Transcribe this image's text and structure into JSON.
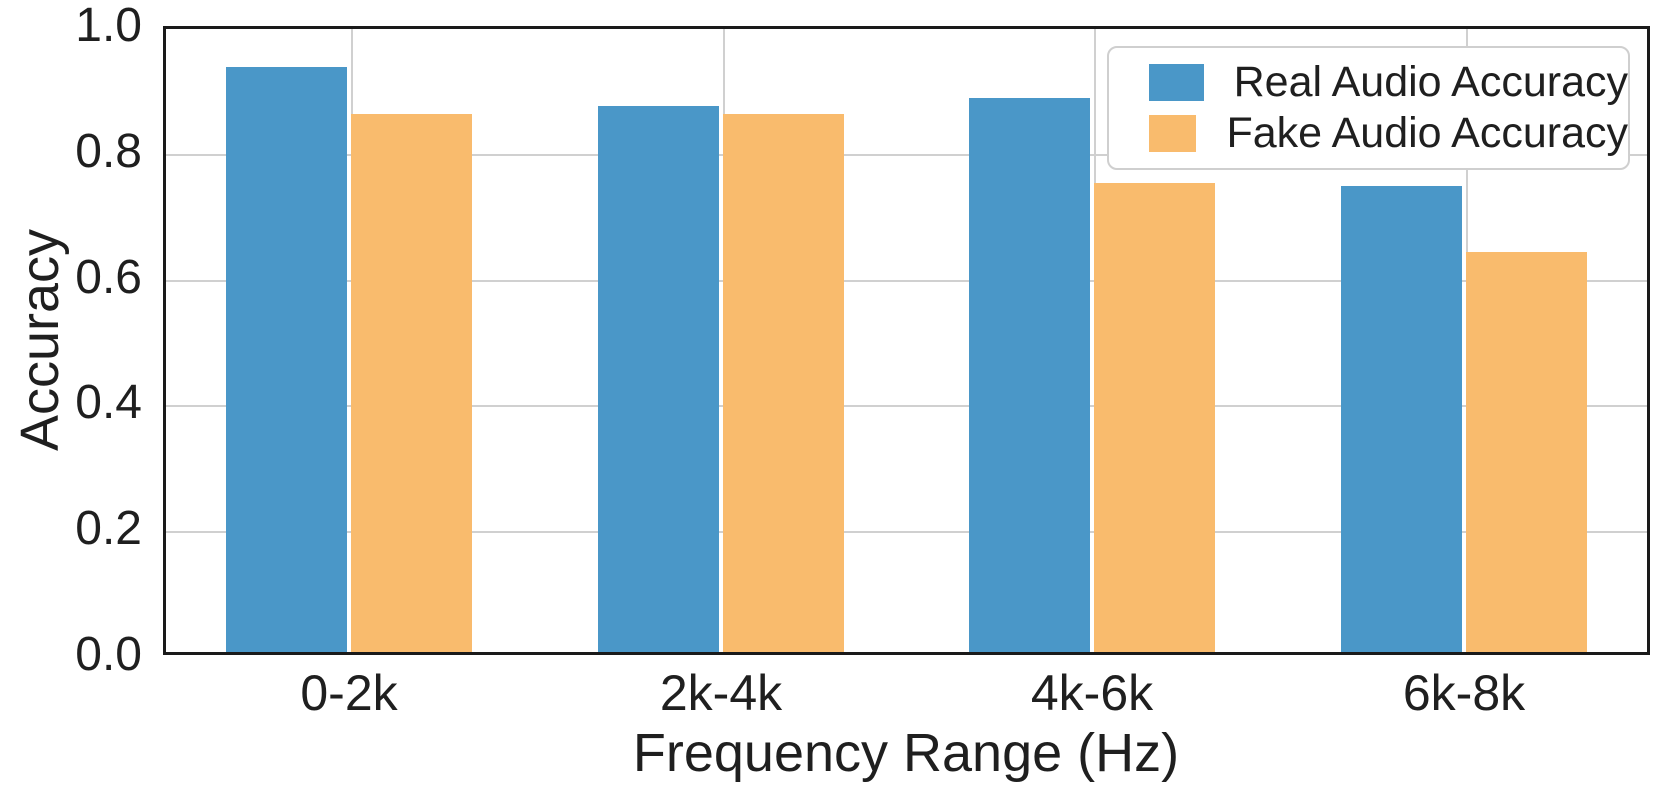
{
  "chart_data": {
    "type": "bar",
    "title": "",
    "categories": [
      "0-2k",
      "2k-4k",
      "4k-6k",
      "6k-8k"
    ],
    "series": [
      {
        "name": "Real Audio Accuracy",
        "color": "#4A97C8",
        "values": [
          0.93,
          0.868,
          0.881,
          0.741
        ]
      },
      {
        "name": "Fake Audio Accuracy",
        "color": "#F9BB6D",
        "values": [
          0.855,
          0.856,
          0.746,
          0.636
        ]
      }
    ],
    "xlabel": "Frequency Range (Hz)",
    "ylabel": "Accuracy",
    "ylim": [
      0.0,
      1.0
    ],
    "yticks": [
      0.0,
      0.2,
      0.4,
      0.6,
      0.8,
      1.0
    ],
    "ytick_labels": [
      "0.0",
      "0.2",
      "0.4",
      "0.6",
      "0.8",
      "1.0"
    ],
    "grid": true,
    "legend_position": "upper right"
  },
  "colors": {
    "grid": "#d0d0d0",
    "spine": "#1a1a1a",
    "text": "#1f1f1f",
    "background": "#ffffff"
  }
}
